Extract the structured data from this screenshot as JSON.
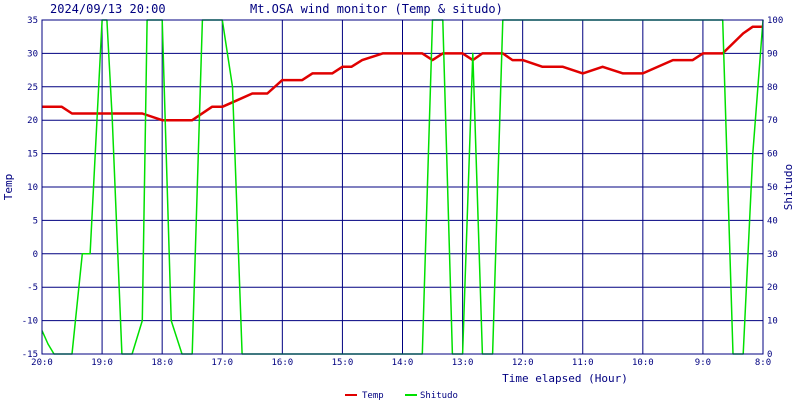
{
  "header": {
    "timestamp": "2024/09/13 20:00",
    "title": "Mt.OSA wind monitor (Temp & situdo)"
  },
  "chart_data": {
    "type": "line",
    "xlabel": "Time elapsed (Hour)",
    "ylabel_left": "Temp",
    "ylabel_right": "Shitudo",
    "ylim_left": [
      -15,
      35
    ],
    "ylim_right": [
      0,
      100
    ],
    "yticks_left": [
      "35",
      "30",
      "25",
      "20",
      "15",
      "10",
      "5",
      "0",
      "-5",
      "-10",
      "-15"
    ],
    "yticks_right": [
      "100",
      "90",
      "80",
      "70",
      "60",
      "50",
      "40",
      "30",
      "20",
      "10",
      "0"
    ],
    "x_ticks": [
      "20:0",
      "19:0",
      "18:0",
      "17:0",
      "16:0",
      "15:0",
      "14:0",
      "13:0",
      "12:0",
      "11:0",
      "10:0",
      "9:0",
      "8:0"
    ],
    "xlim": [
      0,
      12
    ],
    "grid": true,
    "colors": {
      "background": "#ffffff",
      "grid": "#000080",
      "frame": "#000080",
      "temp": "#e00000",
      "shitudo": "#00e000"
    },
    "series": [
      {
        "name": "Temp",
        "axis": "left",
        "x": [
          0.0,
          0.33,
          0.5,
          1.0,
          1.3,
          1.5,
          1.67,
          2.0,
          2.5,
          2.83,
          3.0,
          3.25,
          3.5,
          3.75,
          4.0,
          4.33,
          4.5,
          4.83,
          5.0,
          5.15,
          5.33,
          5.67,
          5.85,
          6.0,
          6.33,
          6.5,
          6.67,
          6.83,
          7.0,
          7.17,
          7.33,
          7.5,
          7.67,
          7.83,
          8.0,
          8.33,
          8.5,
          8.67,
          9.0,
          9.33,
          9.67,
          10.0,
          10.5,
          10.83,
          11.0,
          11.17,
          11.33,
          11.67,
          11.83,
          12.0
        ],
        "values": [
          22,
          22,
          21,
          21,
          21,
          21,
          21,
          20,
          20,
          22,
          22,
          23,
          24,
          24,
          26,
          26,
          27,
          27,
          28,
          28,
          29,
          30,
          30,
          30,
          30,
          29,
          30,
          30,
          30,
          29,
          30,
          30,
          30,
          29,
          29,
          28,
          28,
          28,
          27,
          28,
          27,
          27,
          29,
          29,
          30,
          30,
          30,
          33,
          34,
          34
        ]
      },
      {
        "name": "Shitudo",
        "axis": "right",
        "x": [
          0.0,
          0.1,
          0.2,
          0.33,
          0.5,
          0.67,
          0.8,
          1.0,
          1.08,
          1.17,
          1.33,
          1.5,
          1.67,
          1.75,
          2.0,
          2.15,
          2.33,
          2.5,
          2.67,
          2.83,
          3.0,
          3.17,
          3.33,
          3.5,
          3.67,
          4.0,
          4.17,
          4.5,
          5.0,
          5.5,
          6.0,
          6.17,
          6.33,
          6.5,
          6.67,
          6.83,
          7.0,
          7.17,
          7.33,
          7.5,
          7.67,
          7.83,
          8.0,
          8.5,
          9.0,
          9.5,
          10.0,
          10.5,
          11.0,
          11.17,
          11.33,
          11.5,
          11.67,
          11.83,
          12.0
        ],
        "values": [
          7,
          3,
          0,
          0,
          0,
          30,
          30,
          100,
          100,
          70,
          0,
          0,
          10,
          100,
          100,
          10,
          0,
          0,
          100,
          100,
          100,
          80,
          0,
          0,
          0,
          0,
          0,
          0,
          0,
          0,
          0,
          0,
          0,
          100,
          100,
          0,
          0,
          90,
          0,
          0,
          100,
          100,
          100,
          100,
          100,
          100,
          100,
          100,
          100,
          100,
          100,
          0,
          0,
          60,
          100
        ]
      }
    ]
  },
  "legend": {
    "items": [
      "Temp",
      "Shitudo"
    ]
  }
}
